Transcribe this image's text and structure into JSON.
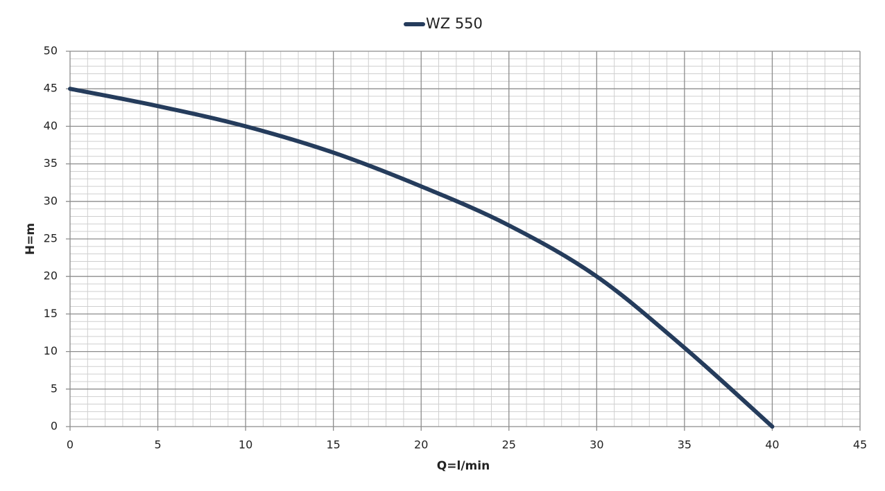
{
  "chart_data": {
    "type": "line",
    "x_label": "Q=l/min",
    "y_label": "H=m",
    "x": [
      0,
      5,
      10,
      15,
      20,
      25,
      30,
      35,
      40
    ],
    "series": [
      {
        "name": "WZ 550",
        "color": "#253c5c",
        "values": [
          45,
          42.7,
          40,
          36.5,
          32,
          26.8,
          20,
          10.5,
          0
        ]
      }
    ],
    "xlim": [
      0,
      45
    ],
    "xticks": [
      0,
      5,
      10,
      15,
      20,
      25,
      30,
      35,
      40,
      45
    ],
    "ylim": [
      0,
      50
    ],
    "yticks": [
      0,
      5,
      10,
      15,
      20,
      25,
      30,
      35,
      40,
      45,
      50
    ],
    "grid": true,
    "minor_grid": true,
    "legend": "top"
  }
}
